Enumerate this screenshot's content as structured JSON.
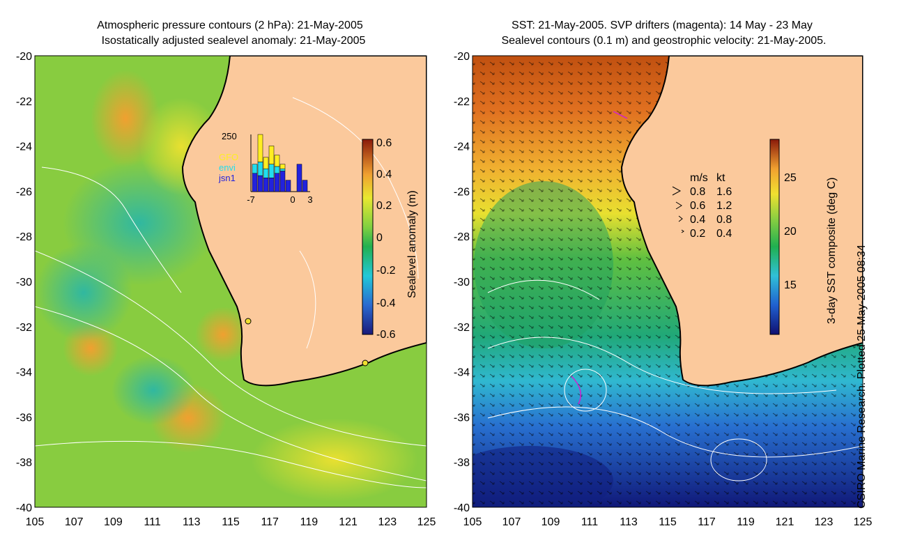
{
  "left_panel": {
    "title_line1": "Atmospheric pressure contours (2 hPa): 21-May-2005",
    "title_line2": "Isostatically adjusted sealevel anomaly: 21-May-2005",
    "colorbar": {
      "label": "Sealevel anomaly (m)",
      "ticks": [
        "0.6",
        "0.4",
        "0.2",
        "0",
        "-0.2",
        "-0.4",
        "-0.6"
      ],
      "range": [
        -0.6,
        0.6
      ]
    },
    "inset": {
      "ymax_label": "250",
      "legend": [
        "GFO",
        "envi",
        "jsn1"
      ],
      "legend_colors": [
        "#ffee22",
        "#22ddee",
        "#2222dd"
      ],
      "x_ticks": [
        "-7",
        "0",
        "3"
      ],
      "bars": [
        {
          "gfo": 0,
          "envi": 40,
          "jsn1": 80
        },
        {
          "gfo": 120,
          "envi": 60,
          "jsn1": 70
        },
        {
          "gfo": 50,
          "envi": 40,
          "jsn1": 60
        },
        {
          "gfo": 80,
          "envi": 60,
          "jsn1": 60
        },
        {
          "gfo": 50,
          "envi": 30,
          "jsn1": 80
        },
        {
          "gfo": 20,
          "envi": 10,
          "jsn1": 90
        },
        {
          "gfo": 0,
          "envi": 0,
          "jsn1": 50
        },
        {
          "gfo": 0,
          "envi": 0,
          "jsn1": 0
        },
        {
          "gfo": 0,
          "envi": 0,
          "jsn1": 120
        },
        {
          "gfo": 0,
          "envi": 0,
          "jsn1": 50
        }
      ]
    }
  },
  "right_panel": {
    "title_line1": "SST: 21-May-2005. SVP drifters (magenta): 14 May - 23 May",
    "title_line2": "Sealevel contours (0.1 m) and geostrophic velocity: 21-May-2005.",
    "colorbar": {
      "label": "3-day SST composite (deg C)",
      "ticks": [
        "25",
        "20",
        "15"
      ],
      "range": [
        11,
        28
      ]
    },
    "velocity_legend": {
      "header_ms": "m/s",
      "header_kt": "kt",
      "rows": [
        {
          "ms": "0.8",
          "kt": "1.6"
        },
        {
          "ms": "0.6",
          "kt": "1.2"
        },
        {
          "ms": "0.4",
          "kt": "0.8"
        },
        {
          "ms": "0.2",
          "kt": "0.4"
        }
      ]
    }
  },
  "axes": {
    "lat_ticks": [
      "-20",
      "-22",
      "-24",
      "-26",
      "-28",
      "-30",
      "-32",
      "-34",
      "-36",
      "-38",
      "-40"
    ],
    "lon_ticks": [
      "105",
      "107",
      "109",
      "111",
      "113",
      "115",
      "117",
      "119",
      "121",
      "123",
      "125"
    ],
    "lon_range": [
      105,
      125
    ],
    "lat_range": [
      -40,
      -20
    ]
  },
  "side_note": "CSIRO Marine Research. Plotted 25-May-2005 08:34",
  "colors": {
    "land": "#fbc99c",
    "coast": "#000000"
  }
}
